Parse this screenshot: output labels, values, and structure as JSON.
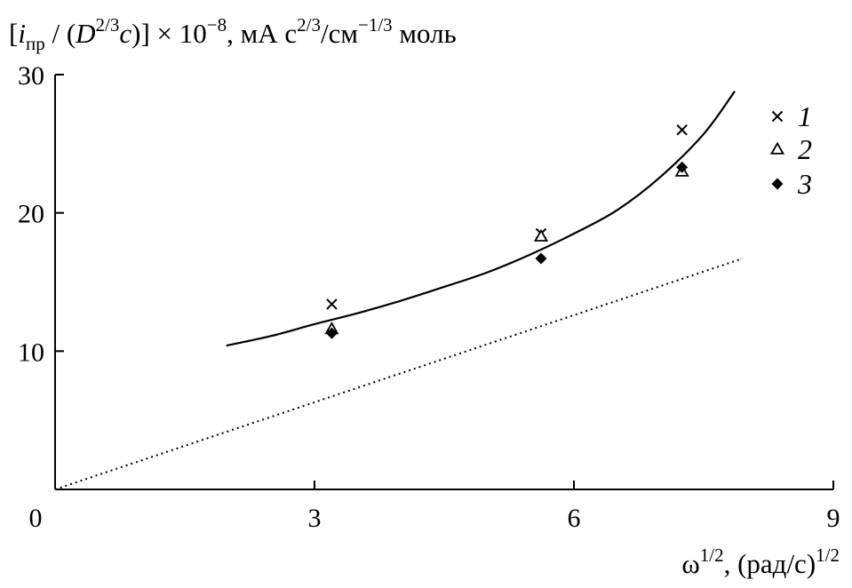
{
  "chart_data": {
    "type": "scatter",
    "title": "",
    "ylabel": {
      "open": "[",
      "var_i": "i",
      "sub": "пр",
      "mid": " / (",
      "var_D": "D",
      "sup_D": "2/3",
      "var_c": "c",
      "close": ")] × 10",
      "sup_exp": "−8",
      "unit_a": ", мА с",
      "sup_unit": "2/3",
      "unit_b": "/см",
      "sup_unit2": "−1/3",
      "unit_c": " моль"
    },
    "xlabel": {
      "base": "ω",
      "sup": "1/2",
      "unit": ", (рад/с)",
      "sup_unit": "1/2"
    },
    "xlim": [
      0,
      9
    ],
    "ylim": [
      0,
      30
    ],
    "x_ticks": [
      {
        "value": 0,
        "label": "0"
      },
      {
        "value": 3,
        "label": "3"
      },
      {
        "value": 6,
        "label": "6"
      },
      {
        "value": 9,
        "label": "9"
      }
    ],
    "y_ticks": [
      {
        "value": 10,
        "label": "10"
      },
      {
        "value": 20,
        "label": "20"
      },
      {
        "value": 30,
        "label": "30"
      }
    ],
    "grid": false,
    "legend_position": "top-right",
    "series": [
      {
        "name": "1",
        "marker": "cross",
        "x": [
          3.2,
          5.62,
          7.25
        ],
        "y": [
          13.4,
          18.5,
          26.0
        ]
      },
      {
        "name": "2",
        "marker": "triangle",
        "x": [
          3.2,
          5.62,
          7.25
        ],
        "y": [
          11.6,
          18.3,
          23.0
        ]
      },
      {
        "name": "3",
        "marker": "diamond",
        "x": [
          3.2,
          5.62,
          7.25
        ],
        "y": [
          11.3,
          16.7,
          23.3
        ]
      }
    ],
    "curves": [
      {
        "style": "solid",
        "x": [
          1.98,
          2.5,
          3.0,
          3.5,
          4.0,
          4.5,
          5.0,
          5.5,
          6.0,
          6.5,
          7.0,
          7.5,
          7.86
        ],
        "y": [
          10.4,
          11.1,
          11.95,
          12.75,
          13.65,
          14.65,
          15.7,
          17.0,
          18.5,
          20.2,
          22.6,
          25.7,
          28.8
        ]
      },
      {
        "style": "dotted",
        "x": [
          0,
          7.95
        ],
        "y": [
          0,
          16.7
        ]
      }
    ]
  }
}
